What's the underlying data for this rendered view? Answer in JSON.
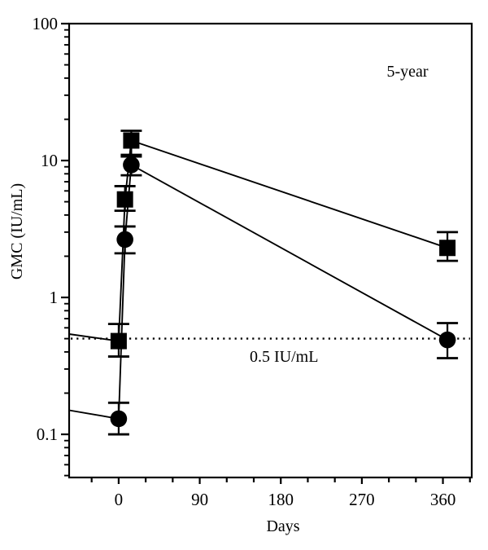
{
  "page": {
    "background": "#ffffff",
    "foreground": "#000000"
  },
  "chart_data": {
    "type": "line",
    "title": "",
    "xlabel": "Days",
    "ylabel": "GMC (IU/mL)",
    "annotation": "5-year",
    "threshold": {
      "value": 0.5,
      "label": "0.5 IU/mL"
    },
    "grid": false,
    "legend": "none",
    "x_axis": {
      "min": -55,
      "max": 392,
      "minor_step": 30,
      "minor_start": -30,
      "minor_end": 390,
      "labeled_ticks": [
        0,
        90,
        180,
        270,
        360
      ]
    },
    "y_axis": {
      "scale": "log",
      "min": 0.0484,
      "max": 100,
      "labeled_ticks": [
        {
          "value": 100,
          "label": "100"
        },
        {
          "value": 10,
          "label": "10"
        },
        {
          "value": 1,
          "label": "1"
        },
        {
          "value": 0.1,
          "label": "0.1"
        }
      ]
    },
    "series": [
      {
        "name": "squares",
        "marker": "square",
        "x": [
          0,
          7,
          14,
          365
        ],
        "y": [
          0.48,
          5.2,
          14,
          2.3
        ],
        "y_lo": [
          0.37,
          4.3,
          11,
          1.85
        ],
        "y_hi": [
          0.64,
          6.5,
          16.5,
          3.0
        ],
        "left_edge_value": 0.54
      },
      {
        "name": "circles",
        "marker": "circle",
        "x": [
          0,
          7,
          14,
          365
        ],
        "y": [
          0.13,
          2.65,
          9.3,
          0.49
        ],
        "y_lo": [
          0.1,
          2.1,
          7.8,
          0.36
        ],
        "y_hi": [
          0.17,
          3.3,
          10.7,
          0.65
        ],
        "left_edge_value": 0.15
      }
    ],
    "color": "#000000"
  }
}
